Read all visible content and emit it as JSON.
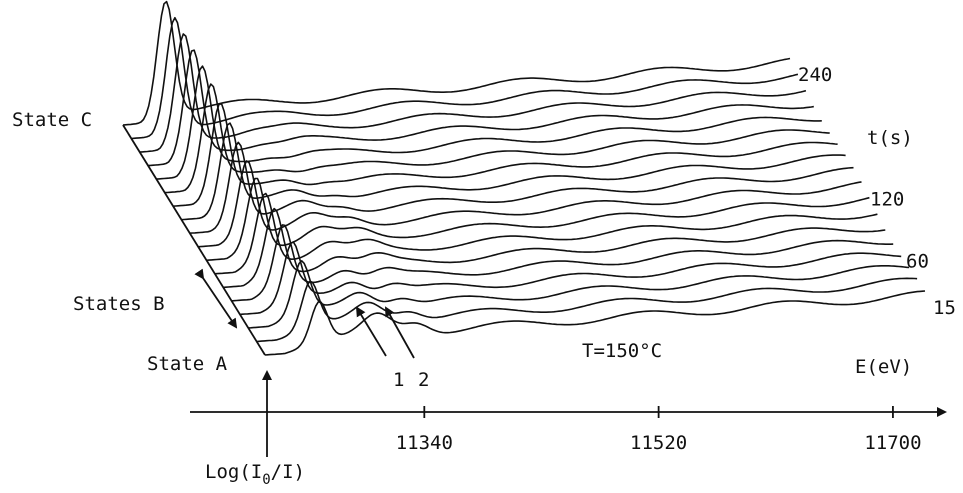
{
  "chart_data": {
    "type": "line",
    "subtype": "stacked-waterfall",
    "title": "",
    "xlabel": "E(eV)",
    "ylabel": "Log(I0/I)",
    "ylabel_parts": {
      "prefix": "Log(I",
      "subscript": "0",
      "suffix": "/I)"
    },
    "x_ticks": [
      11340,
      11520,
      11700
    ],
    "x_tick_labels": [
      "11340",
      "11520",
      "11700"
    ],
    "xlim": [
      11160,
      11740
    ],
    "depth_label": "t(s)",
    "depth_ticks": [
      15,
      60,
      120,
      240
    ],
    "depth_tick_labels": [
      "15",
      "60",
      "120",
      "240"
    ],
    "depth_range": [
      15,
      240
    ],
    "curve_count": 18,
    "condition": "T=150°C",
    "state_labels": {
      "state_a": "State A",
      "states_b": "States B",
      "state_c": "State C"
    },
    "peak_markers": [
      "1",
      "2"
    ],
    "grid": false
  },
  "colors": {
    "line": "#111111",
    "background": "#ffffff"
  },
  "alt": "XANES spectra stacked vs time"
}
